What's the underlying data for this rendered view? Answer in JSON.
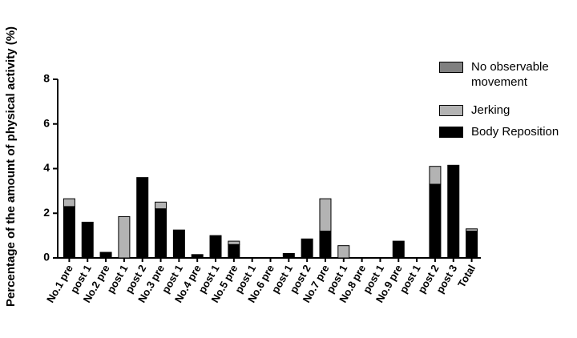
{
  "chart_data": {
    "type": "stacked-bar",
    "y_label": "Percentage of the amount of physical activity (%)",
    "categories": [
      "No.1 pre",
      "post 1",
      "No.2 pre",
      "post 1",
      "post 2",
      "No.3 pre",
      "post 1",
      "No.4 pre",
      "post 1",
      "No.5 pre",
      "post 1",
      "No.6 pre",
      "post 1",
      "post 2",
      "No.7 pre",
      "post 1",
      "No.8 pre",
      "post 1",
      "No.9 pre",
      "post 1",
      "post 2",
      "post 3",
      "Total"
    ],
    "series": [
      {
        "name": "Body Reposition",
        "color": "#000000",
        "values": [
          2.3,
          1.6,
          0.25,
          0,
          3.6,
          2.2,
          1.25,
          0.15,
          1.0,
          0.6,
          0,
          0,
          0.2,
          0.85,
          1.2,
          0,
          0,
          0,
          0.75,
          0,
          3.3,
          4.15,
          1.2
        ]
      },
      {
        "name": "Jerking",
        "color": "#b3b3b3",
        "values": [
          0.35,
          0,
          0,
          1.85,
          0,
          0.3,
          0,
          0,
          0,
          0.15,
          0,
          0,
          0,
          0,
          1.45,
          0.55,
          0,
          0,
          0,
          0,
          0.8,
          0,
          0.1
        ]
      },
      {
        "name": "No observable movement",
        "color": "#808080",
        "values": [
          0,
          0,
          0,
          0,
          0,
          0,
          0,
          0,
          0,
          0,
          0,
          0,
          0,
          0,
          0,
          0,
          0,
          0,
          0,
          0,
          0,
          0,
          0
        ]
      }
    ],
    "ylim": [
      0,
      8
    ],
    "yticks": [
      0,
      2,
      4,
      6,
      8
    ]
  }
}
